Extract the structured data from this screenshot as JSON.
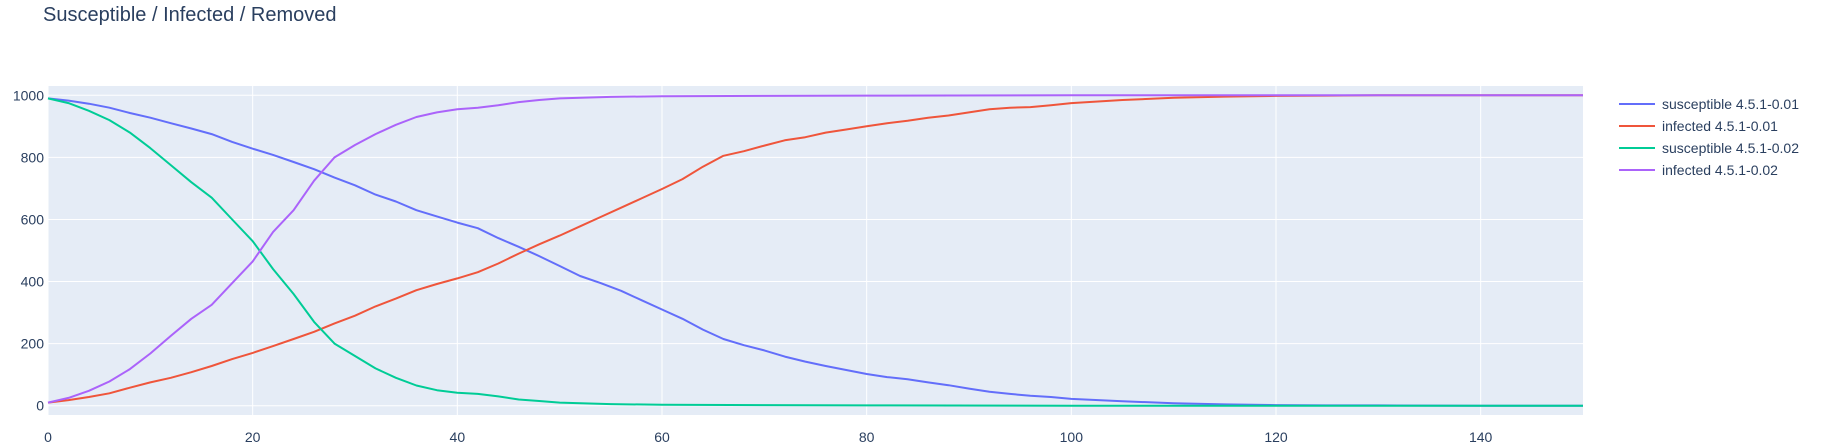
{
  "chart_data": {
    "type": "line",
    "title": "Susceptible / Infected / Removed",
    "xlabel": "",
    "ylabel": "",
    "xlim": [
      0,
      150
    ],
    "ylim": [
      -30,
      1030
    ],
    "xticks": [
      0,
      20,
      40,
      60,
      80,
      100,
      120,
      140
    ],
    "yticks": [
      0,
      200,
      400,
      600,
      800,
      1000
    ],
    "grid": true,
    "legend_position": "top-right",
    "colors": {
      "plot_background": "#e5ecf6",
      "grid": "#ffffff",
      "text": "#2a3f5f"
    },
    "series": [
      {
        "name": "susceptible 4.5.1-0.01",
        "color": "#636efa",
        "x": [
          0,
          2,
          4,
          6,
          8,
          10,
          12,
          14,
          16,
          18,
          20,
          22,
          24,
          26,
          28,
          30,
          32,
          34,
          36,
          38,
          40,
          42,
          44,
          46,
          48,
          50,
          52,
          54,
          56,
          58,
          60,
          62,
          64,
          66,
          68,
          70,
          72,
          74,
          76,
          78,
          80,
          82,
          84,
          86,
          88,
          90,
          92,
          94,
          96,
          98,
          100,
          105,
          110,
          115,
          120,
          125,
          130,
          140,
          150
        ],
        "y": [
          990,
          983,
          973,
          960,
          943,
          928,
          910,
          893,
          875,
          850,
          828,
          808,
          785,
          762,
          735,
          710,
          680,
          658,
          630,
          610,
          590,
          572,
          540,
          512,
          482,
          450,
          418,
          395,
          370,
          340,
          310,
          280,
          245,
          215,
          195,
          178,
          158,
          142,
          128,
          115,
          102,
          92,
          85,
          75,
          66,
          55,
          45,
          38,
          32,
          28,
          22,
          14,
          8,
          4,
          2,
          1,
          1,
          0,
          0
        ]
      },
      {
        "name": "infected 4.5.1-0.01",
        "color": "#ef553b",
        "x": [
          0,
          2,
          4,
          6,
          8,
          10,
          12,
          14,
          16,
          18,
          20,
          22,
          24,
          26,
          28,
          30,
          32,
          34,
          36,
          38,
          40,
          42,
          44,
          46,
          48,
          50,
          52,
          54,
          56,
          58,
          60,
          62,
          64,
          66,
          68,
          70,
          72,
          74,
          76,
          78,
          80,
          82,
          84,
          86,
          88,
          90,
          92,
          94,
          96,
          98,
          100,
          105,
          110,
          115,
          120,
          125,
          130,
          140,
          150
        ],
        "y": [
          10,
          18,
          28,
          40,
          58,
          75,
          90,
          108,
          128,
          150,
          170,
          192,
          215,
          238,
          265,
          290,
          320,
          345,
          372,
          392,
          410,
          430,
          458,
          490,
          520,
          548,
          578,
          608,
          638,
          668,
          698,
          730,
          770,
          805,
          820,
          838,
          855,
          865,
          880,
          890,
          900,
          910,
          918,
          928,
          935,
          945,
          955,
          960,
          962,
          968,
          975,
          985,
          992,
          996,
          998,
          999,
          1000,
          1000,
          1000
        ]
      },
      {
        "name": "susceptible 4.5.1-0.02",
        "color": "#00cc96",
        "x": [
          0,
          2,
          4,
          6,
          8,
          10,
          12,
          14,
          16,
          18,
          20,
          22,
          24,
          26,
          28,
          30,
          32,
          34,
          36,
          38,
          40,
          42,
          44,
          46,
          48,
          50,
          55,
          60,
          70,
          80,
          100,
          120,
          150
        ],
        "y": [
          990,
          975,
          950,
          920,
          880,
          830,
          775,
          720,
          670,
          600,
          530,
          440,
          360,
          270,
          200,
          160,
          120,
          90,
          65,
          50,
          42,
          38,
          30,
          20,
          15,
          10,
          5,
          3,
          2,
          1,
          0,
          0,
          0
        ]
      },
      {
        "name": "infected 4.5.1-0.02",
        "color": "#ab63fa",
        "x": [
          0,
          2,
          4,
          6,
          8,
          10,
          12,
          14,
          16,
          18,
          20,
          22,
          24,
          26,
          28,
          30,
          32,
          34,
          36,
          38,
          40,
          42,
          44,
          46,
          48,
          50,
          55,
          60,
          70,
          80,
          100,
          120,
          150
        ],
        "y": [
          10,
          25,
          48,
          78,
          118,
          168,
          225,
          280,
          325,
          395,
          465,
          560,
          630,
          725,
          800,
          840,
          875,
          905,
          930,
          945,
          955,
          960,
          968,
          978,
          985,
          990,
          995,
          997,
          998,
          999,
          1000,
          1000,
          1000
        ]
      }
    ]
  }
}
